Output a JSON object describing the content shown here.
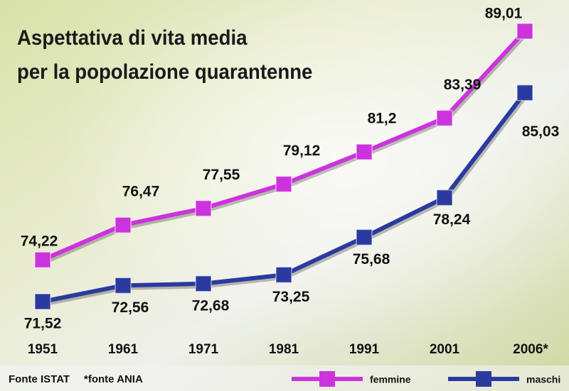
{
  "chart_data": {
    "type": "line",
    "title": [
      "Aspettativa di vita media",
      "per la popolazione quarantenne"
    ],
    "categories": [
      "1951",
      "1961",
      "1971",
      "1981",
      "1991",
      "2001",
      "2006*"
    ],
    "series": [
      {
        "name": "femmine",
        "color": "#cc33dd",
        "values": [
          74.22,
          76.47,
          77.55,
          79.12,
          81.2,
          83.39,
          89.01
        ],
        "value_labels": [
          "74,22",
          "76,47",
          "77,55",
          "79,12",
          "81,2",
          "83,39",
          "89,01"
        ]
      },
      {
        "name": "maschi",
        "color": "#2b3a9f",
        "values": [
          71.52,
          72.56,
          72.68,
          73.25,
          75.68,
          78.24,
          85.03
        ],
        "value_labels": [
          "71,52",
          "72,56",
          "72,68",
          "73,25",
          "75,68",
          "78,24",
          "85,03"
        ]
      }
    ],
    "notes": [
      "Fonte ISTAT",
      "*fonte ANIA"
    ]
  }
}
